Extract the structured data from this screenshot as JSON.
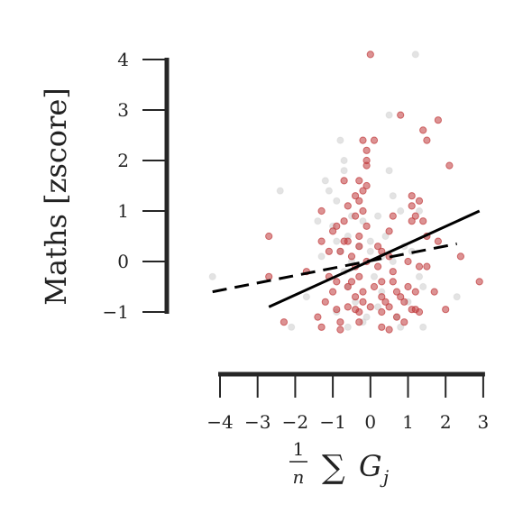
{
  "chart_data": {
    "type": "scatter",
    "title": "",
    "xlabel": "1/n ∑ G_j",
    "xlabel_parts": {
      "numerator": "1",
      "denominator": "n",
      "sum": "∑",
      "var": "G",
      "sub": "j"
    },
    "ylabel": "Maths [zscore]",
    "xlim": [
      -4,
      3
    ],
    "ylim": [
      -1,
      4
    ],
    "xticks": [
      -4,
      -3,
      -2,
      -1,
      0,
      1,
      2,
      3
    ],
    "xtick_labels": [
      "−4",
      "−3",
      "−2",
      "−1",
      "0",
      "1",
      "2",
      "3"
    ],
    "yticks": [
      -1,
      0,
      1,
      2,
      3,
      4
    ],
    "ytick_labels": [
      "−1",
      "0",
      "1",
      "2",
      "3",
      "4"
    ],
    "grid": false,
    "colors": {
      "red_points": "#c0393b",
      "gray_points": "#c8c8c8",
      "axis": "#262626",
      "line": "#000000"
    },
    "series": [
      {
        "name": "gray",
        "kind": "points",
        "points": [
          [
            -4.2,
            -0.3
          ],
          [
            1.2,
            4.1
          ],
          [
            0.5,
            2.9
          ],
          [
            -0.8,
            2.4
          ],
          [
            -0.7,
            2.0
          ],
          [
            -0.7,
            1.8
          ],
          [
            0.5,
            1.8
          ],
          [
            -1.2,
            1.6
          ],
          [
            -2.4,
            1.4
          ],
          [
            -1.1,
            1.4
          ],
          [
            -0.9,
            1.2
          ],
          [
            0.6,
            1.3
          ],
          [
            -0.5,
            0.9
          ],
          [
            -0.2,
            0.8
          ],
          [
            0.8,
            1.0
          ],
          [
            1.3,
            1.0
          ],
          [
            -1.4,
            0.8
          ],
          [
            -1.0,
            0.7
          ],
          [
            0.2,
            0.9
          ],
          [
            -0.9,
            0.4
          ],
          [
            -0.6,
            0.5
          ],
          [
            -0.3,
            0.3
          ],
          [
            0.4,
            0.5
          ],
          [
            1.5,
            0.5
          ],
          [
            -0.8,
            0.2
          ],
          [
            0.0,
            0.2
          ],
          [
            0.3,
            0.1
          ],
          [
            1.1,
            0.2
          ],
          [
            -1.3,
            0.1
          ],
          [
            -0.5,
            0.0
          ],
          [
            0.6,
            0.0
          ],
          [
            -0.7,
            -0.2
          ],
          [
            0.1,
            -0.3
          ],
          [
            1.3,
            -0.3
          ],
          [
            -0.6,
            -0.5
          ],
          [
            0.3,
            -0.6
          ],
          [
            1.4,
            -0.5
          ],
          [
            2.3,
            -0.7
          ],
          [
            -1.7,
            -0.7
          ],
          [
            -0.4,
            -0.8
          ],
          [
            0.2,
            -0.9
          ],
          [
            1.0,
            -0.8
          ],
          [
            -0.9,
            -1.0
          ],
          [
            -0.1,
            -1.1
          ],
          [
            0.7,
            -1.1
          ],
          [
            1.4,
            -1.3
          ],
          [
            -2.1,
            -1.3
          ],
          [
            -0.6,
            -1.3
          ],
          [
            -0.2,
            -1.2
          ],
          [
            0.8,
            -1.3
          ],
          [
            0.0,
            0.4
          ],
          [
            0.9,
            0.3
          ]
        ]
      },
      {
        "name": "red",
        "kind": "points",
        "points": [
          [
            0.0,
            4.1
          ],
          [
            0.8,
            2.9
          ],
          [
            1.8,
            2.8
          ],
          [
            1.4,
            2.6
          ],
          [
            -0.2,
            2.4
          ],
          [
            0.1,
            2.4
          ],
          [
            1.5,
            2.4
          ],
          [
            -0.1,
            2.2
          ],
          [
            -0.1,
            2.0
          ],
          [
            -0.1,
            1.9
          ],
          [
            2.1,
            1.9
          ],
          [
            -0.3,
            1.6
          ],
          [
            -0.7,
            1.6
          ],
          [
            -0.1,
            1.5
          ],
          [
            -0.2,
            1.4
          ],
          [
            1.1,
            1.3
          ],
          [
            -0.4,
            1.3
          ],
          [
            -0.3,
            1.2
          ],
          [
            1.3,
            1.2
          ],
          [
            -0.6,
            1.1
          ],
          [
            -0.2,
            1.0
          ],
          [
            1.1,
            1.1
          ],
          [
            -1.3,
            1.0
          ],
          [
            -0.4,
            0.9
          ],
          [
            0.6,
            0.9
          ],
          [
            1.2,
            0.9
          ],
          [
            1.4,
            0.8
          ],
          [
            -0.7,
            0.8
          ],
          [
            -0.1,
            0.7
          ],
          [
            1.1,
            0.8
          ],
          [
            -0.9,
            0.7
          ],
          [
            -1.0,
            0.6
          ],
          [
            -2.7,
            0.5
          ],
          [
            -0.3,
            0.5
          ],
          [
            0.5,
            0.6
          ],
          [
            1.5,
            0.5
          ],
          [
            -1.3,
            0.4
          ],
          [
            -0.6,
            0.4
          ],
          [
            -0.7,
            0.4
          ],
          [
            1.8,
            0.4
          ],
          [
            -0.3,
            0.3
          ],
          [
            0.2,
            0.3
          ],
          [
            0.3,
            0.2
          ],
          [
            -0.8,
            0.2
          ],
          [
            -1.1,
            0.2
          ],
          [
            2.4,
            0.1
          ],
          [
            -0.5,
            0.1
          ],
          [
            0.5,
            0.1
          ],
          [
            1.0,
            0.0
          ],
          [
            -0.1,
            0.0
          ],
          [
            1.3,
            -0.1
          ],
          [
            -1.7,
            -0.2
          ],
          [
            -0.4,
            -0.1
          ],
          [
            0.6,
            -0.2
          ],
          [
            1.5,
            -0.1
          ],
          [
            -2.7,
            -0.3
          ],
          [
            -1.1,
            -0.3
          ],
          [
            -0.3,
            -0.3
          ],
          [
            0.3,
            -0.4
          ],
          [
            2.9,
            -0.4
          ],
          [
            -0.9,
            -0.4
          ],
          [
            0.6,
            -0.4
          ],
          [
            1.0,
            -0.5
          ],
          [
            -0.6,
            -0.5
          ],
          [
            0.1,
            -0.5
          ],
          [
            0.7,
            -0.6
          ],
          [
            -1.0,
            -0.6
          ],
          [
            1.2,
            -0.6
          ],
          [
            1.7,
            -0.6
          ],
          [
            -0.4,
            -0.7
          ],
          [
            0.3,
            -0.7
          ],
          [
            0.8,
            -0.7
          ],
          [
            -1.2,
            -0.8
          ],
          [
            -0.2,
            -0.8
          ],
          [
            0.4,
            -0.8
          ],
          [
            0.9,
            -0.8
          ],
          [
            -0.6,
            -0.9
          ],
          [
            0.0,
            -0.9
          ],
          [
            0.5,
            -0.9
          ],
          [
            1.1,
            -0.95
          ],
          [
            2.0,
            -0.95
          ],
          [
            -0.9,
            -0.95
          ],
          [
            -1.4,
            -1.1
          ],
          [
            0.3,
            -1.0
          ],
          [
            0.7,
            -1.1
          ],
          [
            -0.3,
            -1.0
          ],
          [
            -0.8,
            -1.2
          ],
          [
            -2.3,
            -1.2
          ],
          [
            -0.3,
            -1.2
          ],
          [
            0.3,
            -1.3
          ],
          [
            0.9,
            -1.2
          ],
          [
            -1.3,
            -1.3
          ],
          [
            -0.8,
            -1.35
          ],
          [
            0.5,
            -1.35
          ],
          [
            1.2,
            -0.95
          ],
          [
            1.3,
            -1.0
          ],
          [
            -0.4,
            -0.95
          ],
          [
            -0.5,
            -0.4
          ],
          [
            0.2,
            -0.1
          ],
          [
            -0.2,
            -0.6
          ]
        ]
      },
      {
        "name": "dashed-fit",
        "kind": "line",
        "style": "dashed",
        "x": [
          -4.2,
          2.3
        ],
        "y": [
          -0.6,
          0.35
        ]
      },
      {
        "name": "solid-fit",
        "kind": "line",
        "style": "solid",
        "x": [
          -2.7,
          2.9
        ],
        "y": [
          -0.9,
          1.0
        ]
      }
    ]
  }
}
